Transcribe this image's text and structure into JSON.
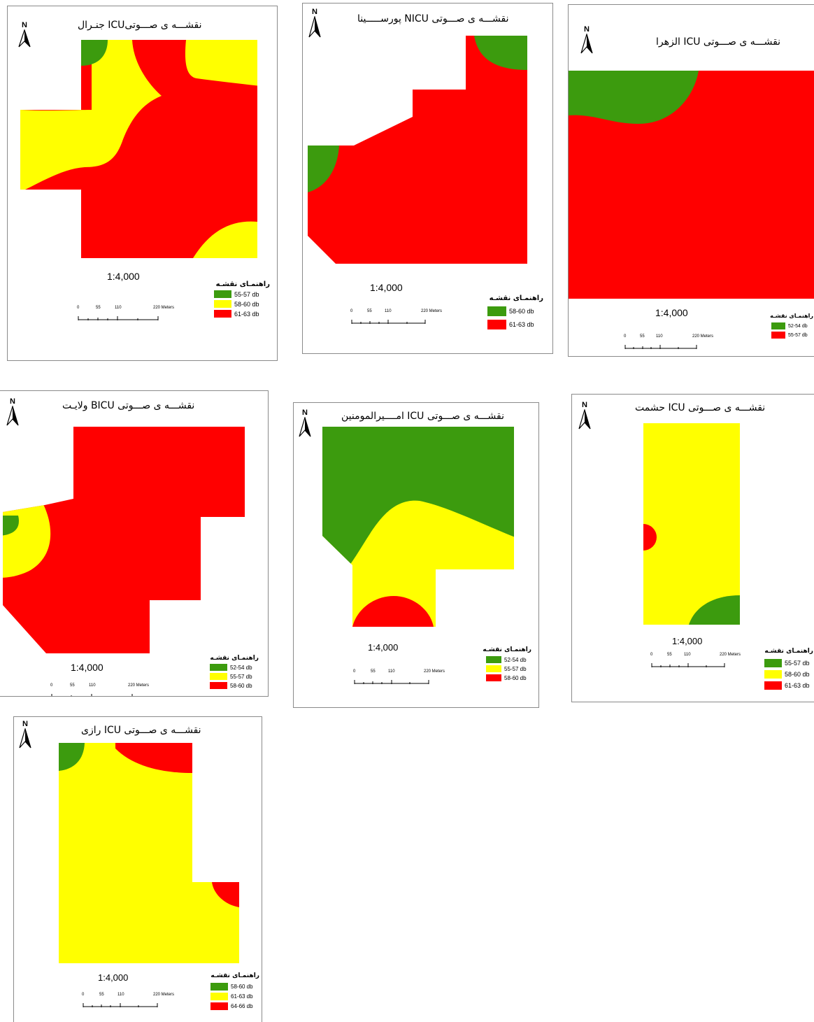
{
  "colors": {
    "green": "#3c9b0e",
    "yellow": "#ffff00",
    "red": "#ff0000"
  },
  "north_label": "N",
  "scale_ticks": [
    "0",
    "55",
    "110",
    "220 Meters"
  ],
  "maps": [
    {
      "id": "general",
      "title": "نقشـــه ی صـــوتیICU  جنـرال",
      "scale": "1:4,000",
      "legend_title": "راهنمـای نقشـه",
      "legend": [
        {
          "label": "55-57 db",
          "color": "green"
        },
        {
          "label": "58-60 db",
          "color": "yellow"
        },
        {
          "label": "61-63 db",
          "color": "red"
        }
      ]
    },
    {
      "id": "pours",
      "title": "نقشـــه ی صـــوتی NICU پورســـــینا",
      "scale": "1:4,000",
      "legend_title": "راهنمـای نقشـه",
      "legend": [
        {
          "label": "58-60 db",
          "color": "green"
        },
        {
          "label": "61-63 db",
          "color": "red"
        }
      ]
    },
    {
      "id": "zahra",
      "title": "نقشـــه ی صـــوتی ICU الزهرا",
      "scale": "1:4,000",
      "legend_title": "راهنمـای نقشـه",
      "legend": [
        {
          "label": "52-54 db",
          "color": "green"
        },
        {
          "label": "55-57 db",
          "color": "red"
        }
      ]
    },
    {
      "id": "velayat",
      "title": "نقشـــه ی صـــوتی BICU ولایـت",
      "scale": "1:4,000",
      "legend_title": "راهنمـای نقشـه",
      "legend": [
        {
          "label": "52-54 db",
          "color": "green"
        },
        {
          "label": "55-57 db",
          "color": "yellow"
        },
        {
          "label": "58-60 db",
          "color": "red"
        }
      ]
    },
    {
      "id": "amir",
      "title": "نقشـــه ی صـــوتی ICU امــــیرالمومنین",
      "scale": "1:4,000",
      "legend_title": "راهنمـای نقشـه",
      "legend": [
        {
          "label": "52-54 db",
          "color": "green"
        },
        {
          "label": "55-57 db",
          "color": "yellow"
        },
        {
          "label": "58-60 db",
          "color": "red"
        }
      ]
    },
    {
      "id": "heshmat",
      "title": "نقشـــه ی صـــوتی ICU حشمت",
      "scale": "1:4,000",
      "legend_title": "راهنمـای نقشـه",
      "legend": [
        {
          "label": "55-57 db",
          "color": "green"
        },
        {
          "label": "58-60 db",
          "color": "yellow"
        },
        {
          "label": "61-63 db",
          "color": "red"
        }
      ]
    },
    {
      "id": "razi",
      "title": "نقشـــه ی صـــوتی ICU رازی",
      "scale": "1:4,000",
      "legend_title": "راهنمـای نقشـه",
      "legend": [
        {
          "label": "58-60 db",
          "color": "green"
        },
        {
          "label": "61-63 db",
          "color": "yellow"
        },
        {
          "label": "64-66 db",
          "color": "red"
        }
      ]
    }
  ]
}
